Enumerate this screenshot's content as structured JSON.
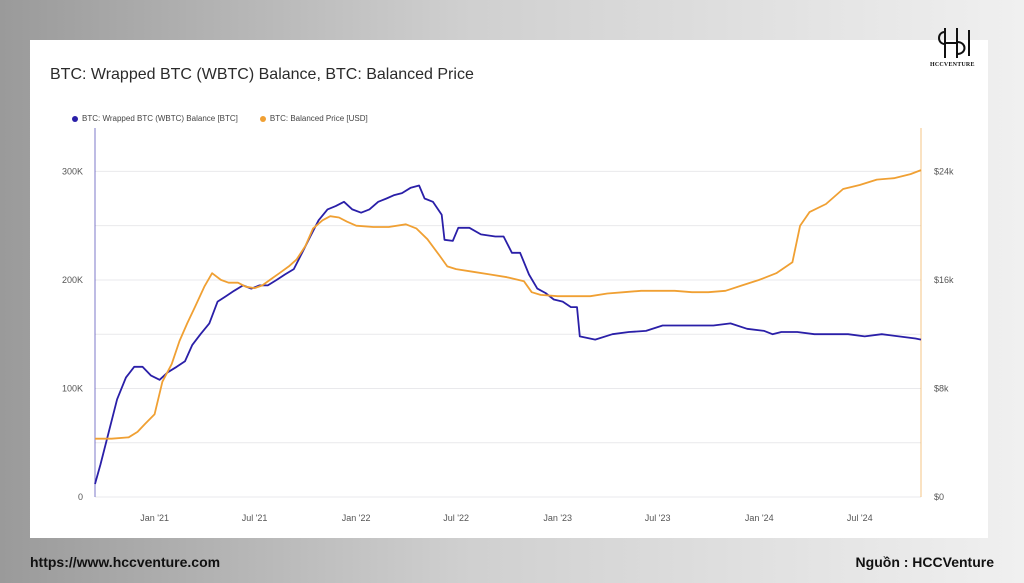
{
  "brand": {
    "logo_text": "HCCVENTURE",
    "website": "https://www.hccventure.com",
    "source": "Nguồn : HCCVenture"
  },
  "colors": {
    "wbtc": "#2a1fa8",
    "price": "#f0a033",
    "grid": "#e9e9ec"
  },
  "chart_data": {
    "type": "line",
    "title": "BTC: Wrapped BTC (WBTC) Balance, BTC: Balanced Price",
    "legend_position": "top-left",
    "grid": true,
    "x_ticks": [
      "Jan '21",
      "Jul '21",
      "Jan '22",
      "Jul '22",
      "Jan '23",
      "Jul '23",
      "Jan '24",
      "Jul '24"
    ],
    "x_tick_dates": [
      "2021-01-01",
      "2021-07-01",
      "2022-01-01",
      "2022-07-01",
      "2023-01-01",
      "2023-07-01",
      "2024-01-01",
      "2024-07-01"
    ],
    "xlim": [
      "2020-09-15",
      "2024-10-20"
    ],
    "y_left": {
      "ticks": [
        "0",
        "100K",
        "200K",
        "300K"
      ],
      "ylim": [
        0,
        340000
      ]
    },
    "y_right": {
      "ticks": [
        "$0",
        "$8k",
        "$16k",
        "$24k"
      ],
      "ylim": [
        0,
        27200
      ]
    },
    "series": [
      {
        "name": "BTC: Wrapped BTC (WBTC) Balance [BTC]",
        "axis": "left",
        "color": "#2a1fa8",
        "points": [
          [
            "2020-09-15",
            12000
          ],
          [
            "2020-09-25",
            30000
          ],
          [
            "2020-10-10",
            60000
          ],
          [
            "2020-10-25",
            90000
          ],
          [
            "2020-11-10",
            110000
          ],
          [
            "2020-11-25",
            120000
          ],
          [
            "2020-12-10",
            120000
          ],
          [
            "2020-12-25",
            112000
          ],
          [
            "2021-01-10",
            108000
          ],
          [
            "2021-01-25",
            115000
          ],
          [
            "2021-02-10",
            120000
          ],
          [
            "2021-02-25",
            125000
          ],
          [
            "2021-03-10",
            140000
          ],
          [
            "2021-03-25",
            150000
          ],
          [
            "2021-04-10",
            160000
          ],
          [
            "2021-04-25",
            180000
          ],
          [
            "2021-05-10",
            185000
          ],
          [
            "2021-05-25",
            190000
          ],
          [
            "2021-06-10",
            195000
          ],
          [
            "2021-06-25",
            192000
          ],
          [
            "2021-07-10",
            195000
          ],
          [
            "2021-07-25",
            195000
          ],
          [
            "2021-08-10",
            200000
          ],
          [
            "2021-08-25",
            205000
          ],
          [
            "2021-09-10",
            210000
          ],
          [
            "2021-09-25",
            225000
          ],
          [
            "2021-10-10",
            240000
          ],
          [
            "2021-10-25",
            255000
          ],
          [
            "2021-11-10",
            265000
          ],
          [
            "2021-11-25",
            268000
          ],
          [
            "2021-12-10",
            272000
          ],
          [
            "2021-12-25",
            265000
          ],
          [
            "2022-01-10",
            262000
          ],
          [
            "2022-01-25",
            265000
          ],
          [
            "2022-02-10",
            272000
          ],
          [
            "2022-02-25",
            275000
          ],
          [
            "2022-03-10",
            278000
          ],
          [
            "2022-03-25",
            280000
          ],
          [
            "2022-04-10",
            285000
          ],
          [
            "2022-04-25",
            287000
          ],
          [
            "2022-05-05",
            275000
          ],
          [
            "2022-05-20",
            272000
          ],
          [
            "2022-06-05",
            260000
          ],
          [
            "2022-06-10",
            237000
          ],
          [
            "2022-06-25",
            236000
          ],
          [
            "2022-07-05",
            248000
          ],
          [
            "2022-07-25",
            248000
          ],
          [
            "2022-08-15",
            242000
          ],
          [
            "2022-09-10",
            240000
          ],
          [
            "2022-09-25",
            240000
          ],
          [
            "2022-10-10",
            225000
          ],
          [
            "2022-10-25",
            225000
          ],
          [
            "2022-11-10",
            205000
          ],
          [
            "2022-11-25",
            192000
          ],
          [
            "2022-12-10",
            188000
          ],
          [
            "2022-12-25",
            182000
          ],
          [
            "2023-01-10",
            180000
          ],
          [
            "2023-01-25",
            175000
          ],
          [
            "2023-02-05",
            175000
          ],
          [
            "2023-02-10",
            148000
          ],
          [
            "2023-03-10",
            145000
          ],
          [
            "2023-04-10",
            150000
          ],
          [
            "2023-05-10",
            152000
          ],
          [
            "2023-06-10",
            153000
          ],
          [
            "2023-07-10",
            158000
          ],
          [
            "2023-08-10",
            158000
          ],
          [
            "2023-09-10",
            158000
          ],
          [
            "2023-10-10",
            158000
          ],
          [
            "2023-11-10",
            160000
          ],
          [
            "2023-12-10",
            155000
          ],
          [
            "2024-01-10",
            153000
          ],
          [
            "2024-01-25",
            150000
          ],
          [
            "2024-02-10",
            152000
          ],
          [
            "2024-03-10",
            152000
          ],
          [
            "2024-04-10",
            150000
          ],
          [
            "2024-05-10",
            150000
          ],
          [
            "2024-06-10",
            150000
          ],
          [
            "2024-07-10",
            148000
          ],
          [
            "2024-08-10",
            150000
          ],
          [
            "2024-09-10",
            148000
          ],
          [
            "2024-10-10",
            146000
          ],
          [
            "2024-10-20",
            145000
          ]
        ]
      },
      {
        "name": "BTC: Balanced Price [USD]",
        "axis": "right",
        "color": "#f0a033",
        "points": [
          [
            "2020-09-15",
            4300
          ],
          [
            "2020-10-15",
            4300
          ],
          [
            "2020-11-15",
            4400
          ],
          [
            "2020-12-01",
            4800
          ],
          [
            "2020-12-15",
            5400
          ],
          [
            "2021-01-01",
            6100
          ],
          [
            "2021-01-15",
            8500
          ],
          [
            "2021-02-01",
            9800
          ],
          [
            "2021-02-15",
            11500
          ],
          [
            "2021-03-01",
            12800
          ],
          [
            "2021-03-15",
            14000
          ],
          [
            "2021-04-01",
            15500
          ],
          [
            "2021-04-15",
            16500
          ],
          [
            "2021-05-01",
            16000
          ],
          [
            "2021-05-15",
            15800
          ],
          [
            "2021-06-01",
            15800
          ],
          [
            "2021-06-15",
            15500
          ],
          [
            "2021-07-01",
            15400
          ],
          [
            "2021-07-15",
            15600
          ],
          [
            "2021-08-01",
            16100
          ],
          [
            "2021-08-15",
            16500
          ],
          [
            "2021-09-01",
            17000
          ],
          [
            "2021-09-15",
            17500
          ],
          [
            "2021-10-01",
            18500
          ],
          [
            "2021-10-15",
            19800
          ],
          [
            "2021-11-01",
            20400
          ],
          [
            "2021-11-15",
            20700
          ],
          [
            "2021-12-01",
            20600
          ],
          [
            "2021-12-15",
            20300
          ],
          [
            "2022-01-01",
            20000
          ],
          [
            "2022-02-01",
            19900
          ],
          [
            "2022-03-01",
            19900
          ],
          [
            "2022-04-01",
            20100
          ],
          [
            "2022-04-20",
            19800
          ],
          [
            "2022-05-10",
            19000
          ],
          [
            "2022-06-01",
            17800
          ],
          [
            "2022-06-15",
            17000
          ],
          [
            "2022-07-01",
            16800
          ],
          [
            "2022-08-01",
            16600
          ],
          [
            "2022-09-01",
            16400
          ],
          [
            "2022-10-01",
            16200
          ],
          [
            "2022-11-01",
            15900
          ],
          [
            "2022-11-15",
            15100
          ],
          [
            "2022-12-01",
            14900
          ],
          [
            "2023-01-01",
            14800
          ],
          [
            "2023-02-01",
            14800
          ],
          [
            "2023-03-01",
            14800
          ],
          [
            "2023-04-01",
            15000
          ],
          [
            "2023-05-01",
            15100
          ],
          [
            "2023-06-01",
            15200
          ],
          [
            "2023-07-01",
            15200
          ],
          [
            "2023-08-01",
            15200
          ],
          [
            "2023-09-01",
            15100
          ],
          [
            "2023-10-01",
            15100
          ],
          [
            "2023-11-01",
            15200
          ],
          [
            "2023-12-01",
            15600
          ],
          [
            "2024-01-01",
            16000
          ],
          [
            "2024-02-01",
            16500
          ],
          [
            "2024-03-01",
            17300
          ],
          [
            "2024-03-15",
            20000
          ],
          [
            "2024-04-01",
            21000
          ],
          [
            "2024-05-01",
            21600
          ],
          [
            "2024-06-01",
            22700
          ],
          [
            "2024-07-01",
            23000
          ],
          [
            "2024-08-01",
            23400
          ],
          [
            "2024-09-01",
            23500
          ],
          [
            "2024-10-01",
            23800
          ],
          [
            "2024-10-20",
            24100
          ]
        ]
      }
    ]
  }
}
